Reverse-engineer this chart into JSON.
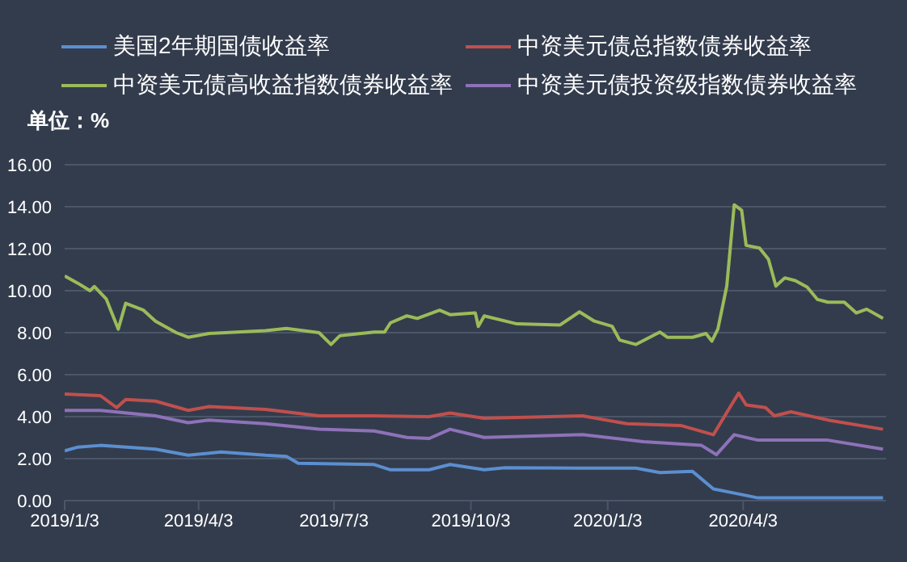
{
  "chart_data": {
    "type": "line",
    "ylabel": "单位：%",
    "legend": "top",
    "grid": "y",
    "marker": "none",
    "line_style": "solid",
    "xlim": [
      "2019-01-03",
      "2020-07-08"
    ],
    "xticks": [
      {
        "value": "2019-01-03",
        "label": "2019/1/3"
      },
      {
        "value": "2019-04-03",
        "label": "2019/4/3"
      },
      {
        "value": "2019-07-03",
        "label": "2019/7/3"
      },
      {
        "value": "2019-10-03",
        "label": "2019/10/3"
      },
      {
        "value": "2020-01-03",
        "label": "2020/1/3"
      },
      {
        "value": "2020-04-03",
        "label": "2020/4/3"
      }
    ],
    "ylim": [
      0,
      16
    ],
    "yticks": [
      {
        "value": 0,
        "label": "0.00"
      },
      {
        "value": 2,
        "label": "2.00"
      },
      {
        "value": 4,
        "label": "4.00"
      },
      {
        "value": 6,
        "label": "6.00"
      },
      {
        "value": 8,
        "label": "8.00"
      },
      {
        "value": 10,
        "label": "10.00"
      },
      {
        "value": 12,
        "label": "12.00"
      },
      {
        "value": 14,
        "label": "14.00"
      },
      {
        "value": 16,
        "label": "16.00"
      }
    ],
    "series": [
      {
        "name": "美国2年期国债收益率",
        "color": "#5b8fd0",
        "x": [
          "2019-01-03",
          "2019-01-12",
          "2019-01-27",
          "2019-03-05",
          "2019-03-27",
          "2019-04-18",
          "2019-05-18",
          "2019-06-01",
          "2019-06-09",
          "2019-07-30",
          "2019-08-10",
          "2019-09-05",
          "2019-09-19",
          "2019-10-12",
          "2019-10-26",
          "2019-12-17",
          "2020-01-22",
          "2020-02-07",
          "2020-02-29",
          "2020-03-14",
          "2020-03-28",
          "2020-04-13",
          "2020-07-06"
        ],
        "values": [
          2.37,
          2.55,
          2.63,
          2.45,
          2.16,
          2.32,
          2.16,
          2.11,
          1.78,
          1.72,
          1.47,
          1.47,
          1.72,
          1.47,
          1.57,
          1.55,
          1.55,
          1.34,
          1.39,
          0.56,
          0.36,
          0.13,
          0.13
        ]
      },
      {
        "name": "中资美元债总指数债券收益率",
        "color": "#c0504d",
        "x": [
          "2019-01-03",
          "2019-01-27",
          "2019-02-07",
          "2019-02-13",
          "2019-03-05",
          "2019-03-27",
          "2019-04-10",
          "2019-05-18",
          "2019-06-23",
          "2019-07-30",
          "2019-09-05",
          "2019-09-19",
          "2019-10-12",
          "2019-12-17",
          "2020-01-16",
          "2020-02-21",
          "2020-03-14",
          "2020-03-25",
          "2020-03-31",
          "2020-04-05",
          "2020-04-18",
          "2020-04-24",
          "2020-05-05",
          "2020-05-30",
          "2020-07-06"
        ],
        "values": [
          5.08,
          5.0,
          4.43,
          4.82,
          4.74,
          4.3,
          4.48,
          4.35,
          4.04,
          4.04,
          4.0,
          4.17,
          3.92,
          4.04,
          3.66,
          3.58,
          3.14,
          4.43,
          5.12,
          4.56,
          4.43,
          4.04,
          4.23,
          3.84,
          3.4
        ]
      },
      {
        "name": "中资美元债高收益指数债券收益率",
        "color": "#9bbb59",
        "x": [
          "2019-01-03",
          "2019-01-12",
          "2019-01-20",
          "2019-01-23",
          "2019-01-31",
          "2019-02-08",
          "2019-02-13",
          "2019-02-25",
          "2019-03-05",
          "2019-03-19",
          "2019-03-27",
          "2019-04-10",
          "2019-05-18",
          "2019-06-01",
          "2019-06-23",
          "2019-07-01",
          "2019-07-07",
          "2019-07-30",
          "2019-08-06",
          "2019-08-10",
          "2019-08-21",
          "2019-08-28",
          "2019-09-12",
          "2019-09-19",
          "2019-10-06",
          "2019-10-08",
          "2019-10-12",
          "2019-11-03",
          "2019-12-02",
          "2019-12-15",
          "2019-12-25",
          "2020-01-06",
          "2020-01-11",
          "2020-01-22",
          "2020-02-07",
          "2020-02-12",
          "2020-02-29",
          "2020-03-09",
          "2020-03-13",
          "2020-03-17",
          "2020-03-23",
          "2020-03-28",
          "2020-04-02",
          "2020-04-05",
          "2020-04-14",
          "2020-04-20",
          "2020-04-25",
          "2020-05-01",
          "2020-05-08",
          "2020-05-16",
          "2020-05-23",
          "2020-05-30",
          "2020-06-10",
          "2020-06-18",
          "2020-06-25",
          "2020-07-06"
        ],
        "values": [
          10.7,
          10.35,
          10.0,
          10.2,
          9.6,
          8.17,
          9.4,
          9.07,
          8.55,
          8.0,
          7.78,
          7.96,
          8.1,
          8.2,
          8.0,
          7.44,
          7.86,
          8.03,
          8.03,
          8.47,
          8.8,
          8.68,
          9.07,
          8.86,
          8.94,
          8.3,
          8.8,
          8.42,
          8.37,
          8.99,
          8.55,
          8.3,
          7.65,
          7.44,
          8.03,
          7.78,
          7.78,
          7.96,
          7.6,
          8.17,
          10.22,
          14.09,
          13.83,
          12.16,
          12.03,
          11.5,
          10.22,
          10.61,
          10.48,
          10.17,
          9.58,
          9.45,
          9.45,
          8.94,
          9.12,
          8.68
        ]
      },
      {
        "name": "中资美元债投资级指数债券收益率",
        "color": "#8e72b8",
        "x": [
          "2019-01-03",
          "2019-01-27",
          "2019-03-05",
          "2019-03-27",
          "2019-04-10",
          "2019-05-18",
          "2019-06-23",
          "2019-07-30",
          "2019-08-21",
          "2019-09-05",
          "2019-09-19",
          "2019-10-12",
          "2019-12-17",
          "2020-01-27",
          "2020-03-06",
          "2020-03-16",
          "2020-03-28",
          "2020-04-13",
          "2020-05-30",
          "2020-07-06"
        ],
        "values": [
          4.3,
          4.3,
          4.04,
          3.71,
          3.84,
          3.66,
          3.4,
          3.32,
          3.01,
          2.96,
          3.4,
          3.01,
          3.14,
          2.81,
          2.63,
          2.19,
          3.14,
          2.88,
          2.88,
          2.45
        ]
      }
    ]
  }
}
